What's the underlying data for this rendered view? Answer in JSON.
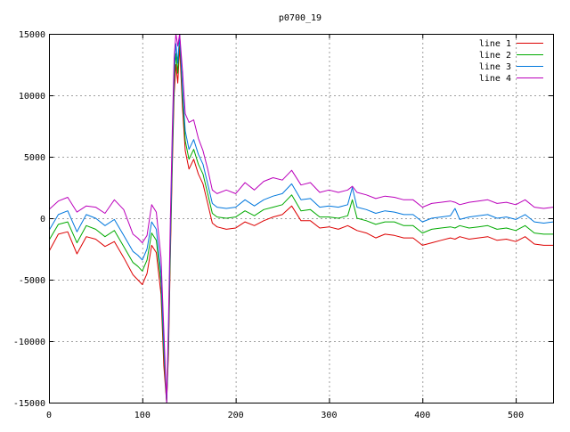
{
  "chart_data": {
    "type": "line",
    "title": "p0700_19",
    "xlabel": "",
    "ylabel": "",
    "xlim": [
      0,
      540
    ],
    "ylim": [
      -15000,
      15000
    ],
    "x_ticks": [
      0,
      100,
      200,
      300,
      400,
      500
    ],
    "y_ticks": [
      -15000,
      -10000,
      -5000,
      0,
      5000,
      10000,
      15000
    ],
    "grid": true,
    "legend_position": "top-right",
    "x": [
      0,
      10,
      20,
      30,
      40,
      50,
      60,
      70,
      80,
      90,
      95,
      100,
      105,
      110,
      115,
      120,
      123,
      126,
      128,
      130,
      132,
      134,
      136,
      138,
      140,
      143,
      146,
      150,
      155,
      160,
      165,
      170,
      175,
      180,
      190,
      200,
      210,
      220,
      230,
      240,
      250,
      260,
      270,
      280,
      290,
      300,
      310,
      320,
      325,
      330,
      340,
      350,
      360,
      370,
      380,
      390,
      400,
      410,
      420,
      430,
      435,
      440,
      450,
      460,
      470,
      480,
      490,
      500,
      510,
      520,
      530,
      540
    ],
    "series": [
      {
        "name": "line 1",
        "color": "#dd0000",
        "values": [
          -2700,
          -1300,
          -1100,
          -2900,
          -1500,
          -1700,
          -2300,
          -1900,
          -3200,
          -4600,
          -5000,
          -5400,
          -4500,
          -2200,
          -2800,
          -6200,
          -12000,
          -15000,
          -11000,
          -3000,
          4000,
          10000,
          12500,
          11000,
          14000,
          9000,
          5500,
          4000,
          4800,
          3600,
          2800,
          1200,
          -400,
          -700,
          -900,
          -800,
          -300,
          -600,
          -200,
          100,
          300,
          1000,
          -200,
          -200,
          -800,
          -700,
          -900,
          -600,
          -800,
          -1000,
          -1200,
          -1600,
          -1300,
          -1400,
          -1600,
          -1600,
          -2200,
          -2000,
          -1800,
          -1600,
          -1700,
          -1500,
          -1700,
          -1600,
          -1500,
          -1800,
          -1700,
          -1900,
          -1500,
          -2100,
          -2200,
          -2200
        ]
      },
      {
        "name": "line 2",
        "color": "#00aa00",
        "values": [
          -1800,
          -500,
          -300,
          -2000,
          -600,
          -900,
          -1500,
          -1000,
          -2300,
          -3600,
          -3900,
          -4300,
          -3400,
          -1200,
          -1800,
          -5300,
          -11000,
          -15000,
          -10200,
          -2200,
          4800,
          11000,
          13400,
          11800,
          15000,
          9800,
          6300,
          4800,
          5600,
          4400,
          3600,
          2000,
          400,
          100,
          0,
          100,
          600,
          200,
          700,
          900,
          1100,
          1900,
          600,
          700,
          100,
          100,
          0,
          200,
          1500,
          0,
          -200,
          -500,
          -300,
          -300,
          -600,
          -600,
          -1200,
          -900,
          -800,
          -700,
          -800,
          -600,
          -800,
          -700,
          -600,
          -900,
          -800,
          -1000,
          -600,
          -1200,
          -1300,
          -1300
        ]
      },
      {
        "name": "line 3",
        "color": "#0077dd",
        "values": [
          -1000,
          300,
          600,
          -1100,
          300,
          0,
          -600,
          -100,
          -1400,
          -2700,
          -3000,
          -3400,
          -2500,
          -300,
          -900,
          -4500,
          -10200,
          -15000,
          -9400,
          -1400,
          5600,
          11800,
          14200,
          12600,
          15000,
          10600,
          7100,
          5600,
          6400,
          5200,
          4400,
          2800,
          1200,
          900,
          800,
          900,
          1500,
          1000,
          1500,
          1800,
          2000,
          2800,
          1500,
          1600,
          900,
          1000,
          900,
          1100,
          2500,
          900,
          700,
          400,
          600,
          500,
          300,
          300,
          -300,
          0,
          100,
          200,
          800,
          -100,
          100,
          200,
          300,
          0,
          100,
          -100,
          300,
          -300,
          -400,
          -300
        ]
      },
      {
        "name": "line 4",
        "color": "#bb00bb",
        "values": [
          700,
          1400,
          1700,
          500,
          1000,
          900,
          400,
          1500,
          700,
          -1300,
          -1600,
          -2000,
          -1400,
          1100,
          500,
          -3200,
          -9000,
          -15000,
          -8200,
          0,
          7000,
          13000,
          15000,
          14000,
          15000,
          12000,
          8500,
          7800,
          8000,
          6500,
          5500,
          4000,
          2300,
          2000,
          2300,
          2000,
          2900,
          2300,
          3000,
          3300,
          3100,
          3900,
          2700,
          2900,
          2100,
          2300,
          2100,
          2300,
          2600,
          2100,
          1900,
          1600,
          1800,
          1700,
          1500,
          1500,
          900,
          1200,
          1300,
          1400,
          1300,
          1100,
          1300,
          1400,
          1500,
          1200,
          1300,
          1100,
          1500,
          900,
          800,
          900
        ]
      }
    ]
  }
}
